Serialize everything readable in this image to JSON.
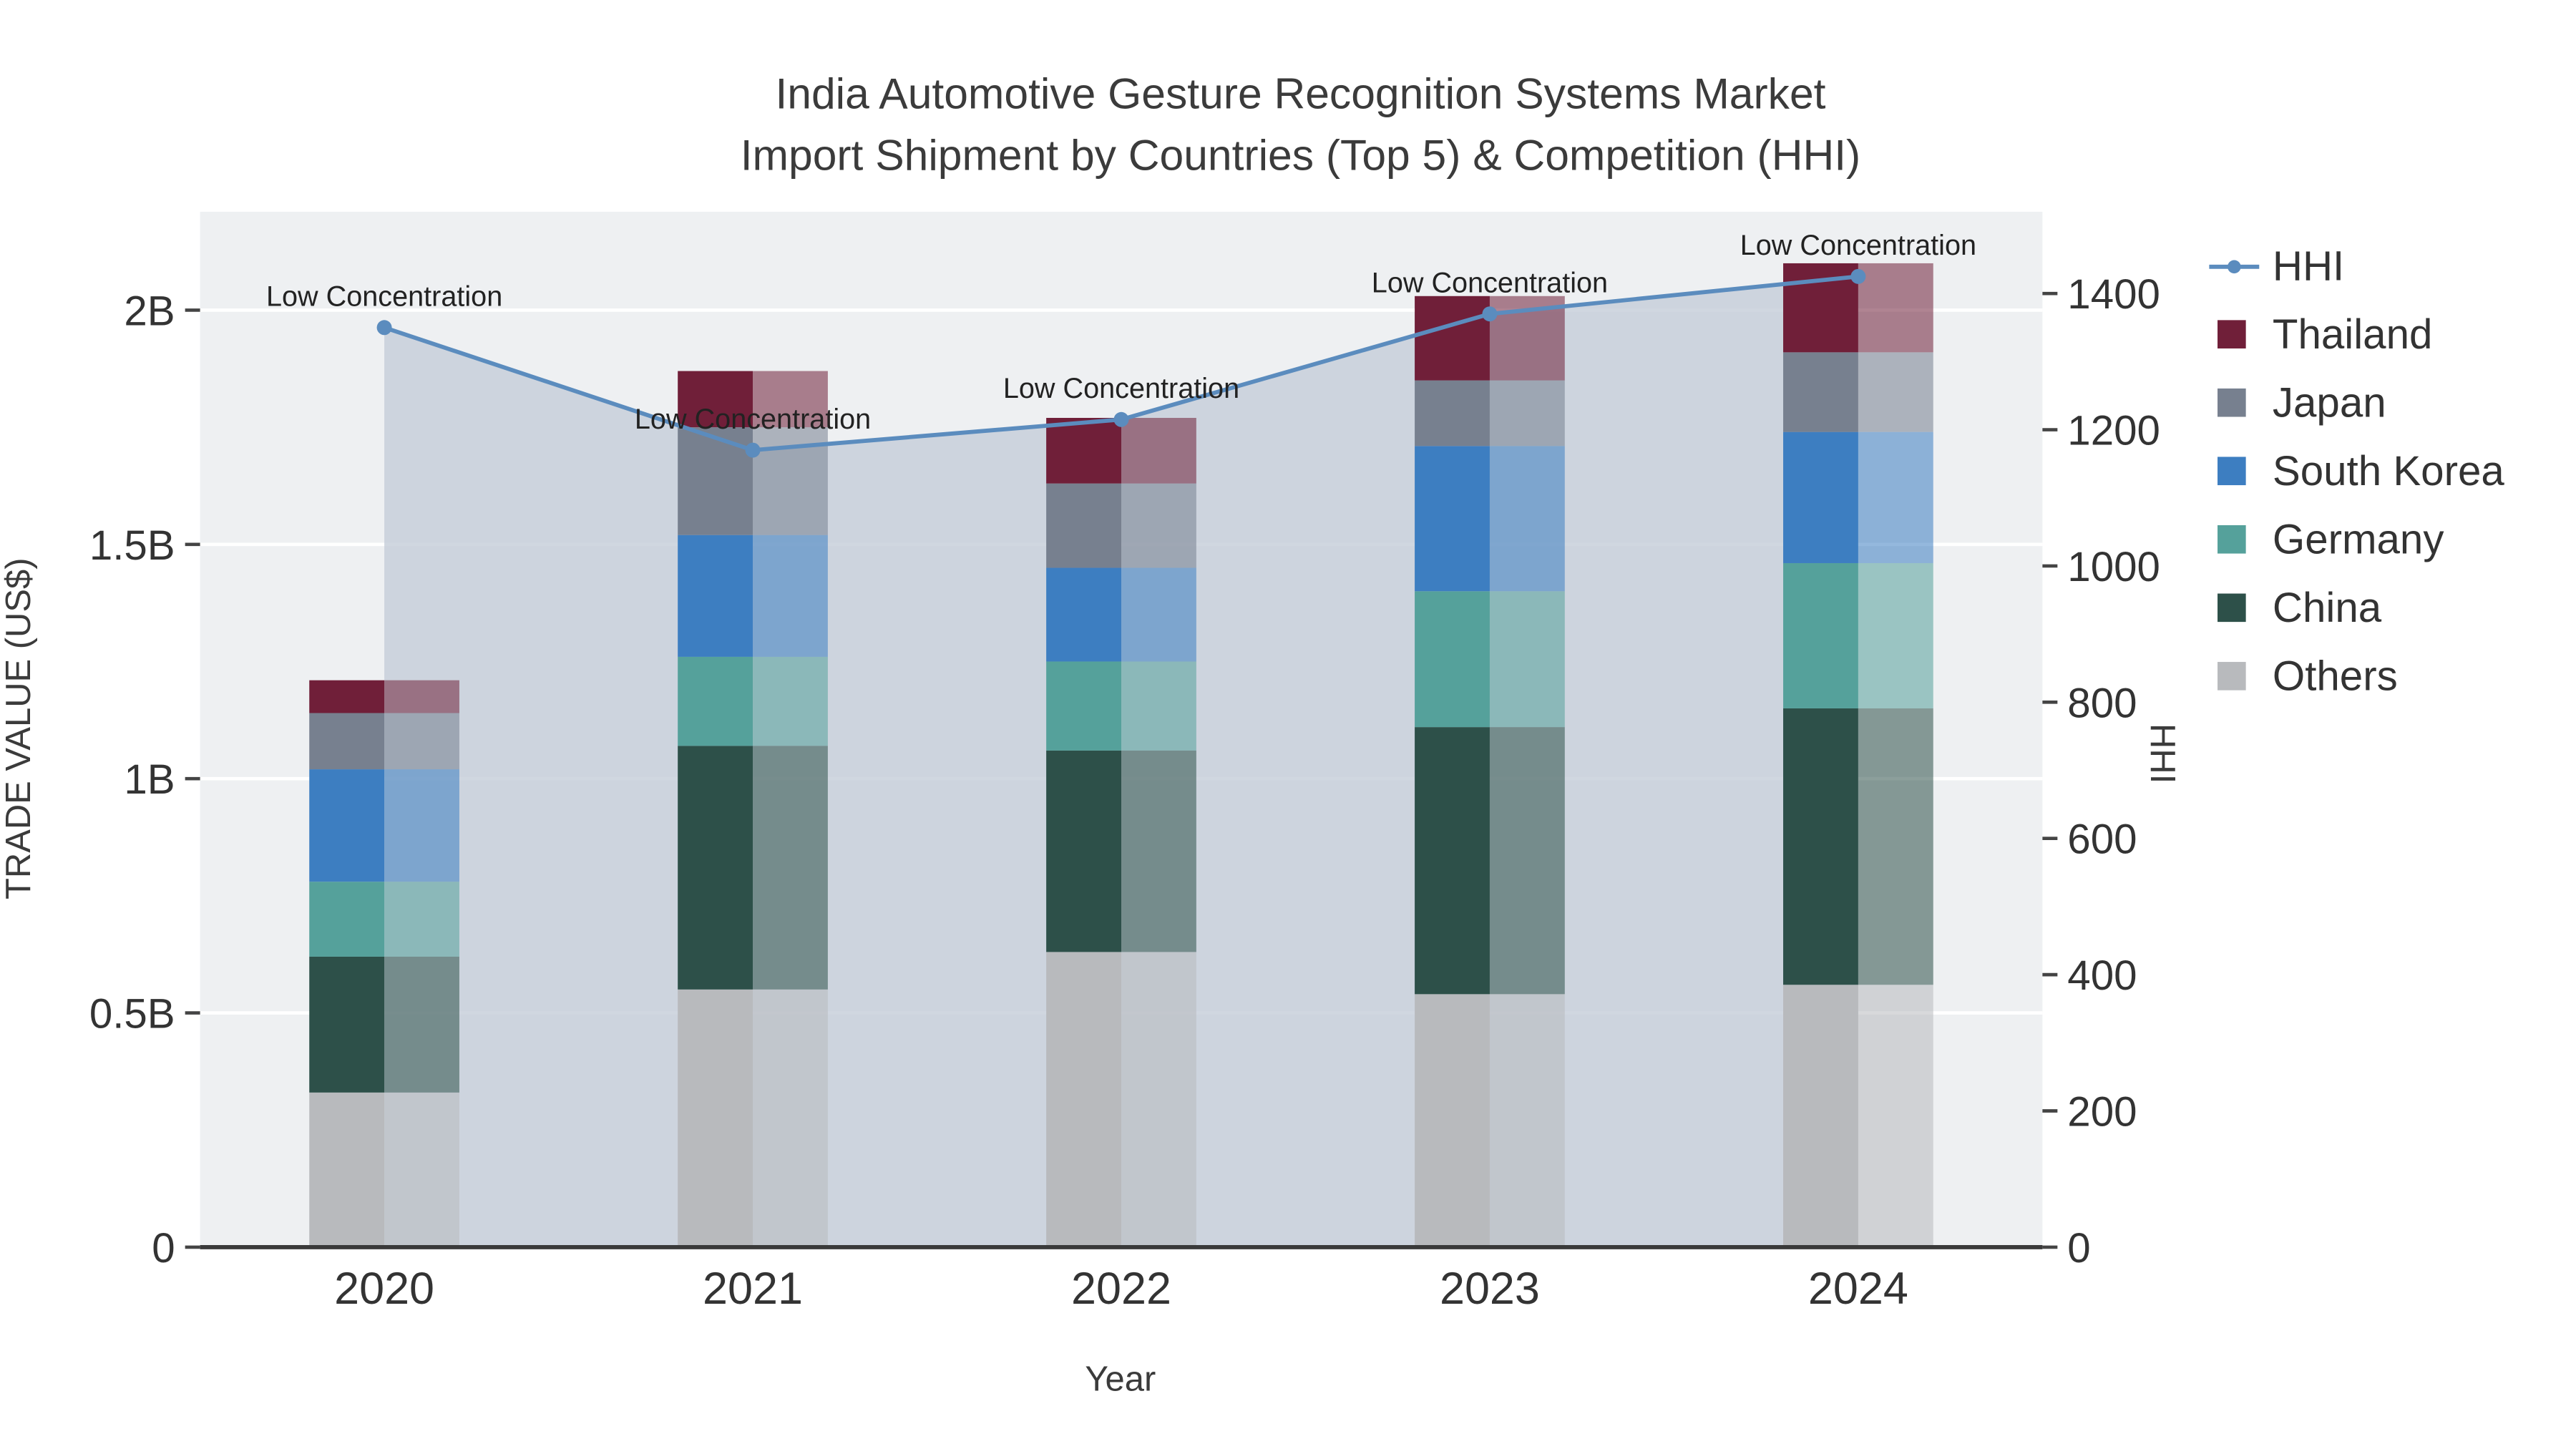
{
  "title": {
    "line1": "India Automotive Gesture Recognition Systems Market",
    "line2": "Import Shipment by Countries (Top 5) & Competition (HHI)"
  },
  "axes": {
    "y_left_title": "TRADE VALUE (US$)",
    "y_right_title": "HHI",
    "x_title": "Year"
  },
  "colors": {
    "page_background": "#ffffff",
    "plot_background": "#eef0f2",
    "axis_line": "#3a3a3a",
    "gridline": "#ffffff",
    "tick_text": "#333333"
  },
  "chart_data": {
    "type": "bar",
    "subtype": "stacked-bars-with-hhi-line-dual-axis",
    "title": "India Automotive Gesture Recognition Systems Market Import Shipment by Countries (Top 5) & Competition (HHI)",
    "xlabel": "Year",
    "ylabel_left": "TRADE VALUE (US$)",
    "ylabel_right": "HHI",
    "units": "billions of US$",
    "categories": [
      "2020",
      "2021",
      "2022",
      "2023",
      "2024"
    ],
    "series": [
      {
        "name": "Others",
        "color": "#b8babd",
        "values": [
          0.33,
          0.55,
          0.63,
          0.54,
          0.56
        ]
      },
      {
        "name": "China",
        "color": "#2d5049",
        "values": [
          0.29,
          0.52,
          0.43,
          0.57,
          0.59
        ]
      },
      {
        "name": "Germany",
        "color": "#55a19b",
        "values": [
          0.16,
          0.19,
          0.19,
          0.29,
          0.31
        ]
      },
      {
        "name": "South Korea",
        "color": "#3d7ec1",
        "values": [
          0.24,
          0.26,
          0.2,
          0.31,
          0.28
        ]
      },
      {
        "name": "Japan",
        "color": "#77808f",
        "values": [
          0.12,
          0.23,
          0.18,
          0.14,
          0.17
        ]
      },
      {
        "name": "Thailand",
        "color": "#701f39",
        "values": [
          0.07,
          0.12,
          0.14,
          0.18,
          0.19
        ]
      }
    ],
    "stack_totals": [
      1.21,
      1.87,
      1.77,
      2.03,
      2.1
    ],
    "line_series": {
      "name": "HHI",
      "color": "#5b8cbe",
      "fill_color": "rgba(196,205,216,0.8)",
      "values": [
        1350,
        1170,
        1215,
        1370,
        1425
      ]
    },
    "annotation_label": "Low Concentration",
    "y_left": {
      "ticks": [
        0,
        0.5,
        1,
        1.5,
        2
      ],
      "tick_labels": [
        "0",
        "0.5B",
        "1B",
        "1.5B",
        "2B"
      ],
      "max": 2.21
    },
    "y_right": {
      "ticks": [
        0,
        200,
        400,
        600,
        800,
        1000,
        1200,
        1400
      ],
      "tick_labels": [
        "0",
        "200",
        "400",
        "600",
        "800",
        "1000",
        "1200",
        "1400"
      ],
      "max": 1520
    },
    "legend_position": "right",
    "grid": "horizontal-only",
    "legend": [
      {
        "label": "HHI",
        "type": "line",
        "color": "#5b8cbe"
      },
      {
        "label": "Thailand",
        "type": "square",
        "color": "#701f39"
      },
      {
        "label": "Japan",
        "type": "square",
        "color": "#77808f"
      },
      {
        "label": "South Korea",
        "type": "square",
        "color": "#3d7ec1"
      },
      {
        "label": "Germany",
        "type": "square",
        "color": "#55a19b"
      },
      {
        "label": "China",
        "type": "square",
        "color": "#2d5049"
      },
      {
        "label": "Others",
        "type": "square",
        "color": "#b8babd"
      }
    ]
  }
}
